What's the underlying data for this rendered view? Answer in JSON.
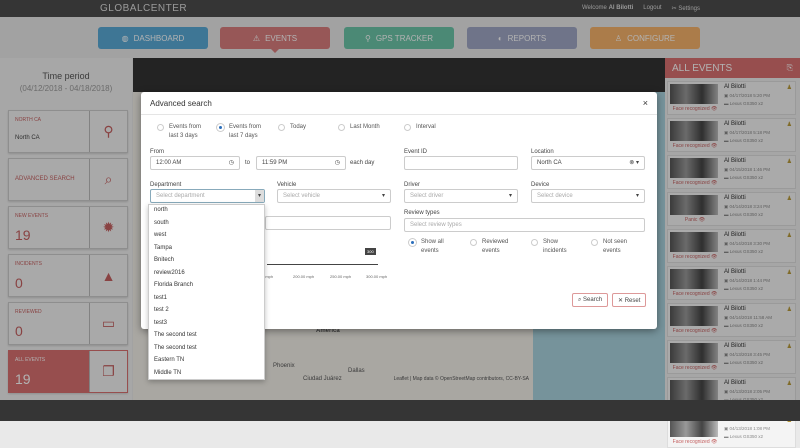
{
  "header": {
    "logo": "GLOBALCENTER",
    "welcome": "Welcome",
    "user": "Al Bilotti",
    "logout": "Logout",
    "settings": "Settings"
  },
  "nav": [
    {
      "label": "DASHBOARD",
      "color": "#5aaad6"
    },
    {
      "label": "EVENTS",
      "color": "#d87d7d"
    },
    {
      "label": "GPS TRACKER",
      "color": "#6cc4a8"
    },
    {
      "label": "REPORTS",
      "color": "#9fa7c4"
    },
    {
      "label": "CONFIGURE",
      "color": "#f5b26b"
    }
  ],
  "sidebar": {
    "time_period": "Time period",
    "range": "(04/12/2018 - 04/18/2018)",
    "location": {
      "label": "NORTH CA",
      "value": "North CA"
    },
    "advanced": "ADVANCED SEARCH",
    "new_events": {
      "label": "NEW EVENTS",
      "count": "19"
    },
    "incidents": {
      "label": "INCIDENTS",
      "count": "0"
    },
    "reviewed": {
      "label": "REVIEWED",
      "count": "0"
    },
    "all_events": {
      "label": "ALL EVENTS",
      "count": "19"
    }
  },
  "map": {
    "labels": [
      "America",
      "Phoenix",
      "Dallas",
      "Ciudad Juárez"
    ],
    "attribution": "Leaflet | Map data © OpenStreetMap contributors, CC-BY-SA"
  },
  "events_panel": {
    "title": "ALL EVENTS",
    "items": [
      {
        "name": "Al Bilotti",
        "date": "04/17/2018 5:20 PM",
        "vehicle": "Lexus GS350 x2",
        "tag": "Face recognized"
      },
      {
        "name": "Al Bilotti",
        "date": "04/17/2018 5:18 PM",
        "vehicle": "Lexus GS350 x2",
        "tag": "Face recognized"
      },
      {
        "name": "Al Bilotti",
        "date": "04/15/2018 1:46 PM",
        "vehicle": "Lexus GS350 x2",
        "tag": "Face recognized"
      },
      {
        "name": "Al Bilotti",
        "date": "04/14/2018 3:24 PM",
        "vehicle": "Lexus GS350 x2",
        "tag": "Panic"
      },
      {
        "name": "Al Bilotti",
        "date": "04/14/2018 3:30 PM",
        "vehicle": "Lexus GS350 x2",
        "tag": "Face recognized"
      },
      {
        "name": "Al Bilotti",
        "date": "04/14/2018 1:44 PM",
        "vehicle": "Lexus GS350 x2",
        "tag": "Face recognized"
      },
      {
        "name": "Al Bilotti",
        "date": "04/14/2018 11:58 AM",
        "vehicle": "Lexus GS350 x2",
        "tag": "Face recognized"
      },
      {
        "name": "Al Bilotti",
        "date": "04/13/2018 3:45 PM",
        "vehicle": "Lexus GS350 x2",
        "tag": "Face recognized"
      },
      {
        "name": "Al Bilotti",
        "date": "04/13/2018 2:05 PM",
        "vehicle": "Lexus GS350 x2",
        "tag": "Face recognized"
      },
      {
        "name": "Al Bilotti",
        "date": "04/13/2018 1:08 PM",
        "vehicle": "Lexus GS350 x2",
        "tag": "Face recognized"
      }
    ]
  },
  "modal": {
    "title": "Advanced search",
    "periods": [
      {
        "label1": "Events from",
        "label2": "last 3 days",
        "selected": false
      },
      {
        "label1": "Events from",
        "label2": "last 7 days",
        "selected": true
      },
      {
        "label1": "Today",
        "label2": "",
        "selected": false
      },
      {
        "label1": "Last Month",
        "label2": "",
        "selected": false
      },
      {
        "label1": "Interval",
        "label2": "",
        "selected": false
      }
    ],
    "from_label": "From",
    "from": "12:00 AM",
    "to_label": "to",
    "to": "11:59 PM",
    "each_day": "each day",
    "event_id_label": "Event ID",
    "event_id": "",
    "location_label": "Location",
    "location": "North CA",
    "department_label": "Department",
    "department_ph": "Select department",
    "vehicle_label": "Vehicle",
    "vehicle_ph": "Select vehicle",
    "driver_label": "Driver",
    "driver_ph": "Select driver",
    "device_label": "Device",
    "device_ph": "Select device",
    "review_label": "Review types",
    "review_ph": "Select review types",
    "review_options": [
      {
        "label1": "Show all",
        "label2": "events",
        "selected": true
      },
      {
        "label1": "Reviewed",
        "label2": "events",
        "selected": false
      },
      {
        "label1": "Show",
        "label2": "incidents",
        "selected": false
      },
      {
        "label1": "Not seen",
        "label2": "events",
        "selected": false
      }
    ],
    "speed_badge": "300",
    "speed_ticks": [
      "150.00 mph",
      "200.00 mph",
      "250.00 mph",
      "300.00 mph"
    ],
    "search": "Search",
    "reset": "Reset",
    "department_options": [
      "north",
      "south",
      "west",
      "Tampa",
      "Bnitech",
      "review2016",
      "Florida Branch",
      "test1",
      "test 2",
      "test3",
      "The second test",
      "The second test",
      "Eastern TN",
      "Middle TN"
    ]
  }
}
